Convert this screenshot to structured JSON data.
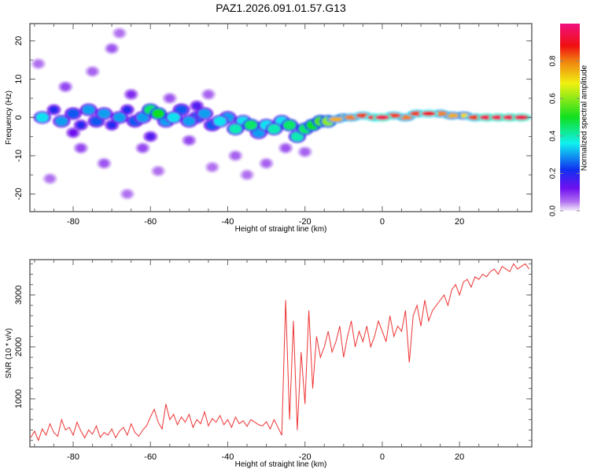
{
  "title": "PAZ1.2026.091.01.57.G13",
  "chart_data": [
    {
      "type": "heatmap",
      "title": "PAZ1.2026.091.01.57.G13",
      "xlabel": "Height of straight line (km)",
      "ylabel": "Frequency (Hz)",
      "xlim": [
        -91.2,
        38.7
      ],
      "ylim": [
        -24.6,
        24.5
      ],
      "xticks": [
        -80,
        -60,
        -40,
        -20,
        0,
        20
      ],
      "xtick_labels": [
        "-80",
        "-60",
        "-40",
        "-20",
        "0",
        "20"
      ],
      "yticks": [
        20,
        10,
        0,
        -10,
        -20
      ],
      "ytick_labels": [
        "20",
        "10",
        "0",
        "-10",
        "-20"
      ],
      "colorbar": {
        "label": "Normalized spectral amplitude",
        "range": [
          0,
          1
        ],
        "ticks": [
          0.0,
          0.2,
          0.4,
          0.6,
          0.8
        ],
        "tick_labels": [
          "0.0",
          "0.2",
          "0.4",
          "0.6",
          "0.8"
        ]
      },
      "blobs_x_freq_amp": [
        [
          -88,
          0,
          0.35
        ],
        [
          -85,
          2,
          0.2
        ],
        [
          -83,
          -1,
          0.3
        ],
        [
          -80,
          1,
          0.25
        ],
        [
          -78,
          -2,
          0.2
        ],
        [
          -76,
          2,
          0.3
        ],
        [
          -74,
          -1,
          0.25
        ],
        [
          -72,
          1,
          0.3
        ],
        [
          -70,
          -2,
          0.2
        ],
        [
          -68,
          0,
          0.3
        ],
        [
          -66,
          2,
          0.2
        ],
        [
          -64,
          -1,
          0.25
        ],
        [
          -62,
          0,
          0.3
        ],
        [
          -60,
          2,
          0.45
        ],
        [
          -58,
          1,
          0.5
        ],
        [
          -56,
          -1,
          0.3
        ],
        [
          -54,
          0,
          0.35
        ],
        [
          -52,
          2,
          0.25
        ],
        [
          -50,
          -1,
          0.3
        ],
        [
          -48,
          0,
          0.25
        ],
        [
          -46,
          1,
          0.3
        ],
        [
          -44,
          -2,
          0.25
        ],
        [
          -42,
          -1,
          0.35
        ],
        [
          -40,
          0,
          0.3
        ],
        [
          -38,
          -3,
          0.4
        ],
        [
          -36,
          -1,
          0.35
        ],
        [
          -34,
          -2,
          0.45
        ],
        [
          -32,
          -4,
          0.3
        ],
        [
          -30,
          -2,
          0.35
        ],
        [
          -28,
          -3,
          0.4
        ],
        [
          -26,
          -1,
          0.35
        ],
        [
          -24,
          -2,
          0.45
        ],
        [
          -22,
          -5,
          0.4
        ],
        [
          -20,
          -3,
          0.45
        ],
        [
          -18,
          -2,
          0.5
        ],
        [
          -16,
          -1,
          0.55
        ],
        [
          -14,
          -1,
          0.6
        ],
        [
          -12,
          -0.5,
          0.75
        ],
        [
          -10,
          0,
          0.7
        ],
        [
          -8,
          0,
          0.8
        ],
        [
          -5,
          0.5,
          0.85
        ],
        [
          -2,
          0,
          0.9
        ],
        [
          0,
          0,
          0.95
        ],
        [
          3,
          0.5,
          0.85
        ],
        [
          6,
          0,
          0.8
        ],
        [
          9,
          1,
          0.85
        ],
        [
          12,
          1,
          0.9
        ],
        [
          15,
          1,
          0.8
        ],
        [
          18,
          0.5,
          0.75
        ],
        [
          21,
          0.5,
          0.7
        ],
        [
          24,
          0,
          0.85
        ],
        [
          27,
          0,
          0.95
        ],
        [
          30,
          0,
          0.95
        ],
        [
          33,
          0,
          0.95
        ],
        [
          36,
          0,
          0.95
        ],
        [
          -89,
          14,
          0.05
        ],
        [
          -82,
          8,
          0.08
        ],
        [
          -75,
          12,
          0.06
        ],
        [
          -70,
          18,
          0.07
        ],
        [
          -68,
          22,
          0.05
        ],
        [
          -65,
          6,
          0.1
        ],
        [
          -62,
          -8,
          0.08
        ],
        [
          -72,
          -12,
          0.07
        ],
        [
          -78,
          -8,
          0.08
        ],
        [
          -86,
          -16,
          0.05
        ],
        [
          -55,
          5,
          0.07
        ],
        [
          -50,
          -6,
          0.08
        ],
        [
          -45,
          6,
          0.06
        ],
        [
          -38,
          -10,
          0.06
        ],
        [
          -35,
          -15,
          0.05
        ],
        [
          -30,
          -12,
          0.06
        ],
        [
          -25,
          -8,
          0.07
        ],
        [
          -66,
          -20,
          0.05
        ],
        [
          -58,
          -14,
          0.05
        ],
        [
          -44,
          -13,
          0.05
        ],
        [
          -20,
          -9,
          0.06
        ],
        [
          -80,
          -4,
          0.12
        ],
        [
          -60,
          -5,
          0.15
        ],
        [
          -48,
          3,
          0.15
        ]
      ]
    },
    {
      "type": "line",
      "xlabel": "Height of straight line (km)",
      "ylabel": "SNR (10 * v/v)",
      "xlim": [
        -91.2,
        38.7
      ],
      "ylim": [
        75,
        3680
      ],
      "xticks": [
        -80,
        -60,
        -40,
        -20,
        0,
        20
      ],
      "xtick_labels": [
        "-80",
        "-60",
        "-40",
        "-20",
        "0",
        "20"
      ],
      "yticks": [
        1000,
        2000,
        3000
      ],
      "ytick_labels": [
        "1000",
        "2000",
        "3000"
      ],
      "color": "#ee3333",
      "x_start": -91,
      "x_step": 1,
      "values": [
        250,
        380,
        200,
        420,
        300,
        520,
        350,
        280,
        600,
        400,
        450,
        300,
        550,
        380,
        250,
        400,
        320,
        480,
        260,
        350,
        300,
        420,
        250,
        380,
        450,
        300,
        520,
        350,
        280,
        400,
        480,
        650,
        800,
        550,
        420,
        900,
        600,
        700,
        500,
        650,
        550,
        700,
        450,
        600,
        520,
        750,
        480,
        620,
        550,
        680,
        500,
        600,
        450,
        650,
        520,
        580,
        470,
        600,
        550,
        500,
        480,
        560,
        420,
        600,
        450,
        300,
        2900,
        600,
        2500,
        400,
        1900,
        900,
        2700,
        1200,
        2200,
        1800,
        2000,
        2300,
        1900,
        2100,
        2400,
        1800,
        2200,
        2500,
        2000,
        2300,
        2100,
        2400,
        2000,
        2200,
        2500,
        2300,
        2100,
        2600,
        2200,
        2400,
        2300,
        2700,
        1700,
        2600,
        2800,
        2400,
        2900,
        2500,
        2700,
        2800,
        2900,
        3000,
        2800,
        3100,
        3200,
        3000,
        3250,
        3300,
        3150,
        3350,
        3300,
        3400,
        3350,
        3450,
        3500,
        3400,
        3550,
        3500,
        3450,
        3600,
        3500,
        3550,
        3600,
        3500
      ]
    }
  ]
}
